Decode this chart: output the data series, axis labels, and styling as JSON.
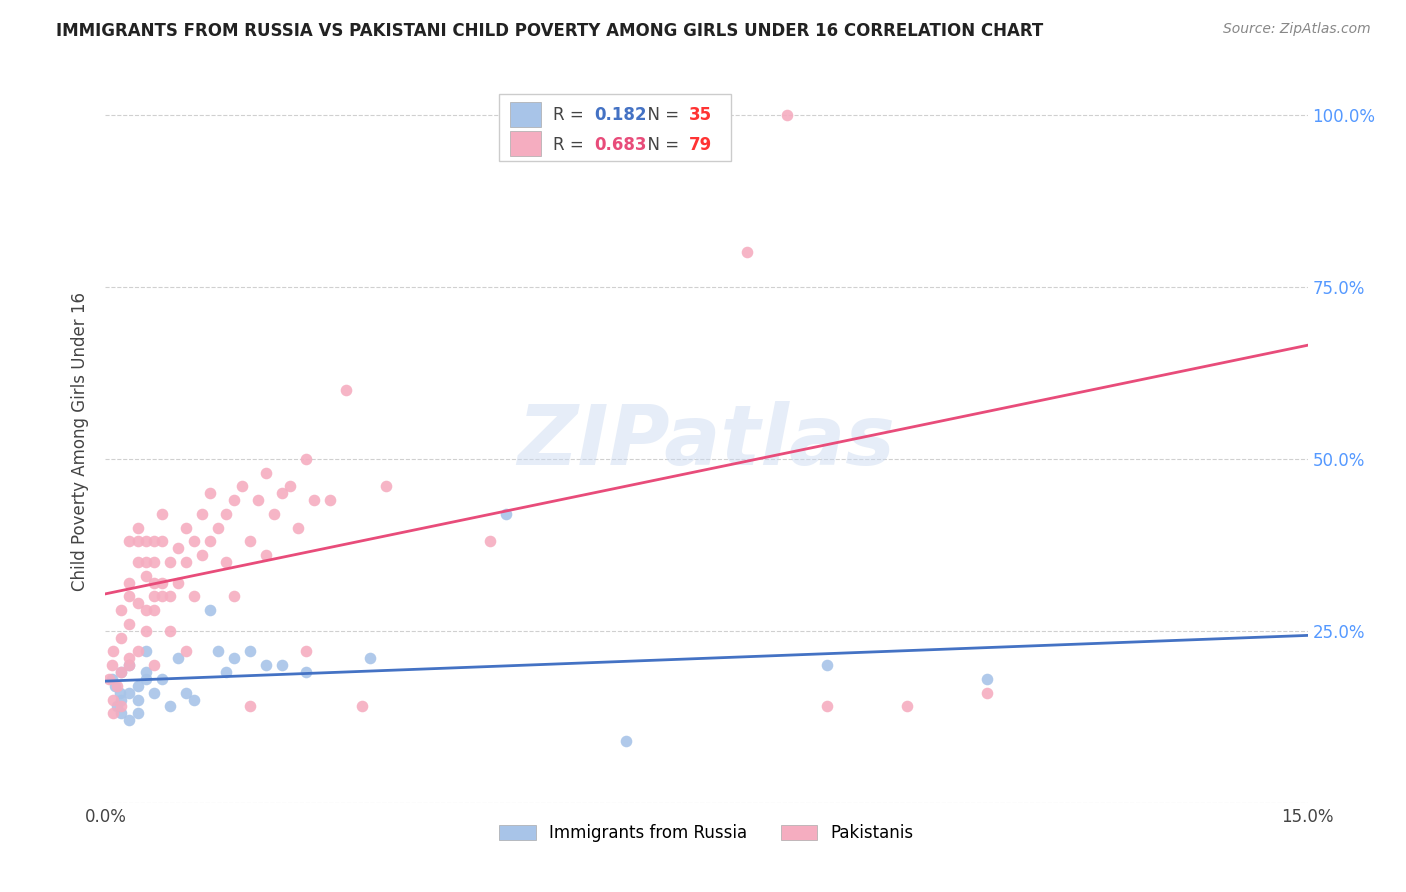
{
  "title": "IMMIGRANTS FROM RUSSIA VS PAKISTANI CHILD POVERTY AMONG GIRLS UNDER 16 CORRELATION CHART",
  "source": "Source: ZipAtlas.com",
  "ylabel": "Child Poverty Among Girls Under 16",
  "xlabel_russia": "Immigrants from Russia",
  "xlabel_pakistani": "Pakistanis",
  "xlim": [
    0.0,
    0.15
  ],
  "ylim": [
    0.0,
    1.05
  ],
  "russia_R": "0.182",
  "russia_N": "35",
  "pakistan_R": "0.683",
  "pakistan_N": "79",
  "russia_color": "#a8c4e8",
  "pakistan_color": "#f5adc0",
  "russia_line_color": "#4472c4",
  "pakistan_line_color": "#e84c7a",
  "tick_color": "#5599ff",
  "watermark": "ZIPatlas",
  "russia_points": [
    [
      0.0008,
      0.18
    ],
    [
      0.0012,
      0.17
    ],
    [
      0.0015,
      0.14
    ],
    [
      0.0018,
      0.16
    ],
    [
      0.002,
      0.13
    ],
    [
      0.002,
      0.19
    ],
    [
      0.002,
      0.15
    ],
    [
      0.003,
      0.16
    ],
    [
      0.003,
      0.12
    ],
    [
      0.003,
      0.2
    ],
    [
      0.004,
      0.15
    ],
    [
      0.004,
      0.17
    ],
    [
      0.004,
      0.13
    ],
    [
      0.005,
      0.18
    ],
    [
      0.005,
      0.19
    ],
    [
      0.005,
      0.22
    ],
    [
      0.006,
      0.16
    ],
    [
      0.007,
      0.18
    ],
    [
      0.008,
      0.14
    ],
    [
      0.009,
      0.21
    ],
    [
      0.01,
      0.16
    ],
    [
      0.011,
      0.15
    ],
    [
      0.013,
      0.28
    ],
    [
      0.014,
      0.22
    ],
    [
      0.015,
      0.19
    ],
    [
      0.016,
      0.21
    ],
    [
      0.018,
      0.22
    ],
    [
      0.02,
      0.2
    ],
    [
      0.022,
      0.2
    ],
    [
      0.025,
      0.19
    ],
    [
      0.033,
      0.21
    ],
    [
      0.05,
      0.42
    ],
    [
      0.065,
      0.09
    ],
    [
      0.09,
      0.2
    ],
    [
      0.11,
      0.18
    ]
  ],
  "pakistan_points": [
    [
      0.0005,
      0.18
    ],
    [
      0.0008,
      0.2
    ],
    [
      0.001,
      0.15
    ],
    [
      0.001,
      0.22
    ],
    [
      0.001,
      0.13
    ],
    [
      0.0015,
      0.17
    ],
    [
      0.002,
      0.19
    ],
    [
      0.002,
      0.24
    ],
    [
      0.002,
      0.28
    ],
    [
      0.002,
      0.14
    ],
    [
      0.003,
      0.21
    ],
    [
      0.003,
      0.3
    ],
    [
      0.003,
      0.26
    ],
    [
      0.003,
      0.32
    ],
    [
      0.003,
      0.38
    ],
    [
      0.003,
      0.2
    ],
    [
      0.004,
      0.29
    ],
    [
      0.004,
      0.35
    ],
    [
      0.004,
      0.22
    ],
    [
      0.004,
      0.38
    ],
    [
      0.004,
      0.4
    ],
    [
      0.005,
      0.28
    ],
    [
      0.005,
      0.33
    ],
    [
      0.005,
      0.25
    ],
    [
      0.005,
      0.35
    ],
    [
      0.005,
      0.38
    ],
    [
      0.006,
      0.3
    ],
    [
      0.006,
      0.35
    ],
    [
      0.006,
      0.38
    ],
    [
      0.006,
      0.28
    ],
    [
      0.006,
      0.2
    ],
    [
      0.006,
      0.32
    ],
    [
      0.007,
      0.32
    ],
    [
      0.007,
      0.38
    ],
    [
      0.007,
      0.42
    ],
    [
      0.007,
      0.3
    ],
    [
      0.008,
      0.35
    ],
    [
      0.008,
      0.3
    ],
    [
      0.008,
      0.25
    ],
    [
      0.009,
      0.37
    ],
    [
      0.009,
      0.32
    ],
    [
      0.01,
      0.4
    ],
    [
      0.01,
      0.35
    ],
    [
      0.01,
      0.22
    ],
    [
      0.011,
      0.38
    ],
    [
      0.011,
      0.3
    ],
    [
      0.012,
      0.42
    ],
    [
      0.012,
      0.36
    ],
    [
      0.013,
      0.45
    ],
    [
      0.013,
      0.38
    ],
    [
      0.014,
      0.4
    ],
    [
      0.015,
      0.42
    ],
    [
      0.015,
      0.35
    ],
    [
      0.016,
      0.44
    ],
    [
      0.016,
      0.3
    ],
    [
      0.017,
      0.46
    ],
    [
      0.018,
      0.38
    ],
    [
      0.018,
      0.14
    ],
    [
      0.019,
      0.44
    ],
    [
      0.02,
      0.48
    ],
    [
      0.02,
      0.36
    ],
    [
      0.021,
      0.42
    ],
    [
      0.022,
      0.45
    ],
    [
      0.023,
      0.46
    ],
    [
      0.024,
      0.4
    ],
    [
      0.025,
      0.5
    ],
    [
      0.025,
      0.22
    ],
    [
      0.026,
      0.44
    ],
    [
      0.028,
      0.44
    ],
    [
      0.03,
      0.6
    ],
    [
      0.032,
      0.14
    ],
    [
      0.035,
      0.46
    ],
    [
      0.048,
      0.38
    ],
    [
      0.065,
      1.0
    ],
    [
      0.08,
      0.8
    ],
    [
      0.085,
      1.0
    ],
    [
      0.09,
      0.14
    ],
    [
      0.1,
      0.14
    ],
    [
      0.11,
      0.16
    ]
  ]
}
